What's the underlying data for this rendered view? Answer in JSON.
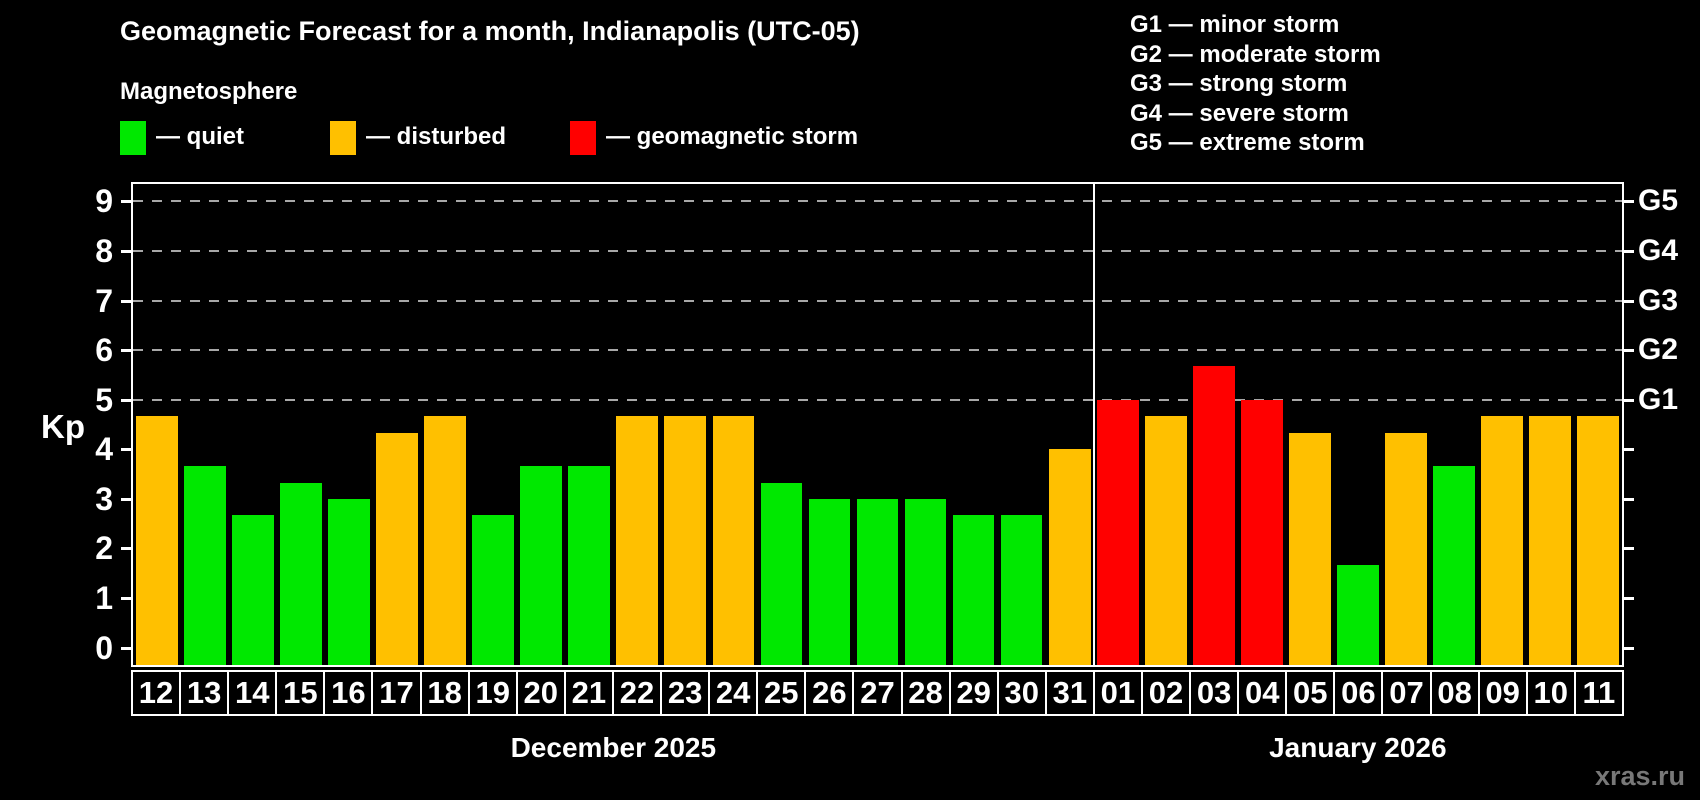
{
  "header": {
    "title": "Geomagnetic Forecast for a month, Indianapolis (UTC-05)",
    "subtitle": "Magnetosphere"
  },
  "legend": {
    "items": [
      {
        "name": "quiet",
        "label": "— quiet",
        "color": "#00e800"
      },
      {
        "name": "disturbed",
        "label": "— disturbed",
        "color": "#ffc000"
      },
      {
        "name": "storm",
        "label": "— geomagnetic storm",
        "color": "#ff0000"
      }
    ]
  },
  "storm_scale_legend": [
    "G1 — minor storm",
    "G2 — moderate storm",
    "G3 — strong storm",
    "G4 — severe storm",
    "G5 — extreme storm"
  ],
  "watermark": "xras.ru",
  "chart_data": {
    "type": "bar",
    "title": "Geomagnetic Forecast for a month, Indianapolis (UTC-05)",
    "xlabel": "",
    "ylabel": "Kp",
    "ylim": [
      0,
      9
    ],
    "yticks": [
      0,
      1,
      2,
      3,
      4,
      5,
      6,
      7,
      8,
      9
    ],
    "gridlines_at": [
      5,
      6,
      7,
      8,
      9
    ],
    "grid_style": "dashed horizontal gray lines at Kp 5 through 9",
    "legend_position": "top-left above plot",
    "right_axis_labels": [
      {
        "kp": 5,
        "label": "G1"
      },
      {
        "kp": 6,
        "label": "G2"
      },
      {
        "kp": 7,
        "label": "G3"
      },
      {
        "kp": 8,
        "label": "G4"
      },
      {
        "kp": 9,
        "label": "G5"
      }
    ],
    "months": [
      {
        "label": "December 2025",
        "days": 20
      },
      {
        "label": "January 2026",
        "days": 11
      }
    ],
    "categories": [
      "12",
      "13",
      "14",
      "15",
      "16",
      "17",
      "18",
      "19",
      "20",
      "21",
      "22",
      "23",
      "24",
      "25",
      "26",
      "27",
      "28",
      "29",
      "30",
      "31",
      "01",
      "02",
      "03",
      "04",
      "05",
      "06",
      "07",
      "08",
      "09",
      "10",
      "11"
    ],
    "bars": [
      {
        "day": "12",
        "kp": 4.67,
        "status": "disturbed"
      },
      {
        "day": "13",
        "kp": 3.67,
        "status": "quiet"
      },
      {
        "day": "14",
        "kp": 2.67,
        "status": "quiet"
      },
      {
        "day": "15",
        "kp": 3.33,
        "status": "quiet"
      },
      {
        "day": "16",
        "kp": 3.0,
        "status": "quiet"
      },
      {
        "day": "17",
        "kp": 4.33,
        "status": "disturbed"
      },
      {
        "day": "18",
        "kp": 4.67,
        "status": "disturbed"
      },
      {
        "day": "19",
        "kp": 2.67,
        "status": "quiet"
      },
      {
        "day": "20",
        "kp": 3.67,
        "status": "quiet"
      },
      {
        "day": "21",
        "kp": 3.67,
        "status": "quiet"
      },
      {
        "day": "22",
        "kp": 4.67,
        "status": "disturbed"
      },
      {
        "day": "23",
        "kp": 4.67,
        "status": "disturbed"
      },
      {
        "day": "24",
        "kp": 4.67,
        "status": "disturbed"
      },
      {
        "day": "25",
        "kp": 3.33,
        "status": "quiet"
      },
      {
        "day": "26",
        "kp": 3.0,
        "status": "quiet"
      },
      {
        "day": "27",
        "kp": 3.0,
        "status": "quiet"
      },
      {
        "day": "28",
        "kp": 3.0,
        "status": "quiet"
      },
      {
        "day": "29",
        "kp": 2.67,
        "status": "quiet"
      },
      {
        "day": "30",
        "kp": 2.67,
        "status": "quiet"
      },
      {
        "day": "31",
        "kp": 4.0,
        "status": "disturbed"
      },
      {
        "day": "01",
        "kp": 5.0,
        "status": "storm"
      },
      {
        "day": "02",
        "kp": 4.67,
        "status": "disturbed"
      },
      {
        "day": "03",
        "kp": 5.67,
        "status": "storm"
      },
      {
        "day": "04",
        "kp": 5.0,
        "status": "storm"
      },
      {
        "day": "05",
        "kp": 4.33,
        "status": "disturbed"
      },
      {
        "day": "06",
        "kp": 1.67,
        "status": "quiet"
      },
      {
        "day": "07",
        "kp": 4.33,
        "status": "disturbed"
      },
      {
        "day": "08",
        "kp": 3.67,
        "status": "quiet"
      },
      {
        "day": "09",
        "kp": 4.67,
        "status": "disturbed"
      },
      {
        "day": "10",
        "kp": 4.67,
        "status": "disturbed"
      },
      {
        "day": "11",
        "kp": 4.67,
        "status": "disturbed"
      }
    ]
  }
}
